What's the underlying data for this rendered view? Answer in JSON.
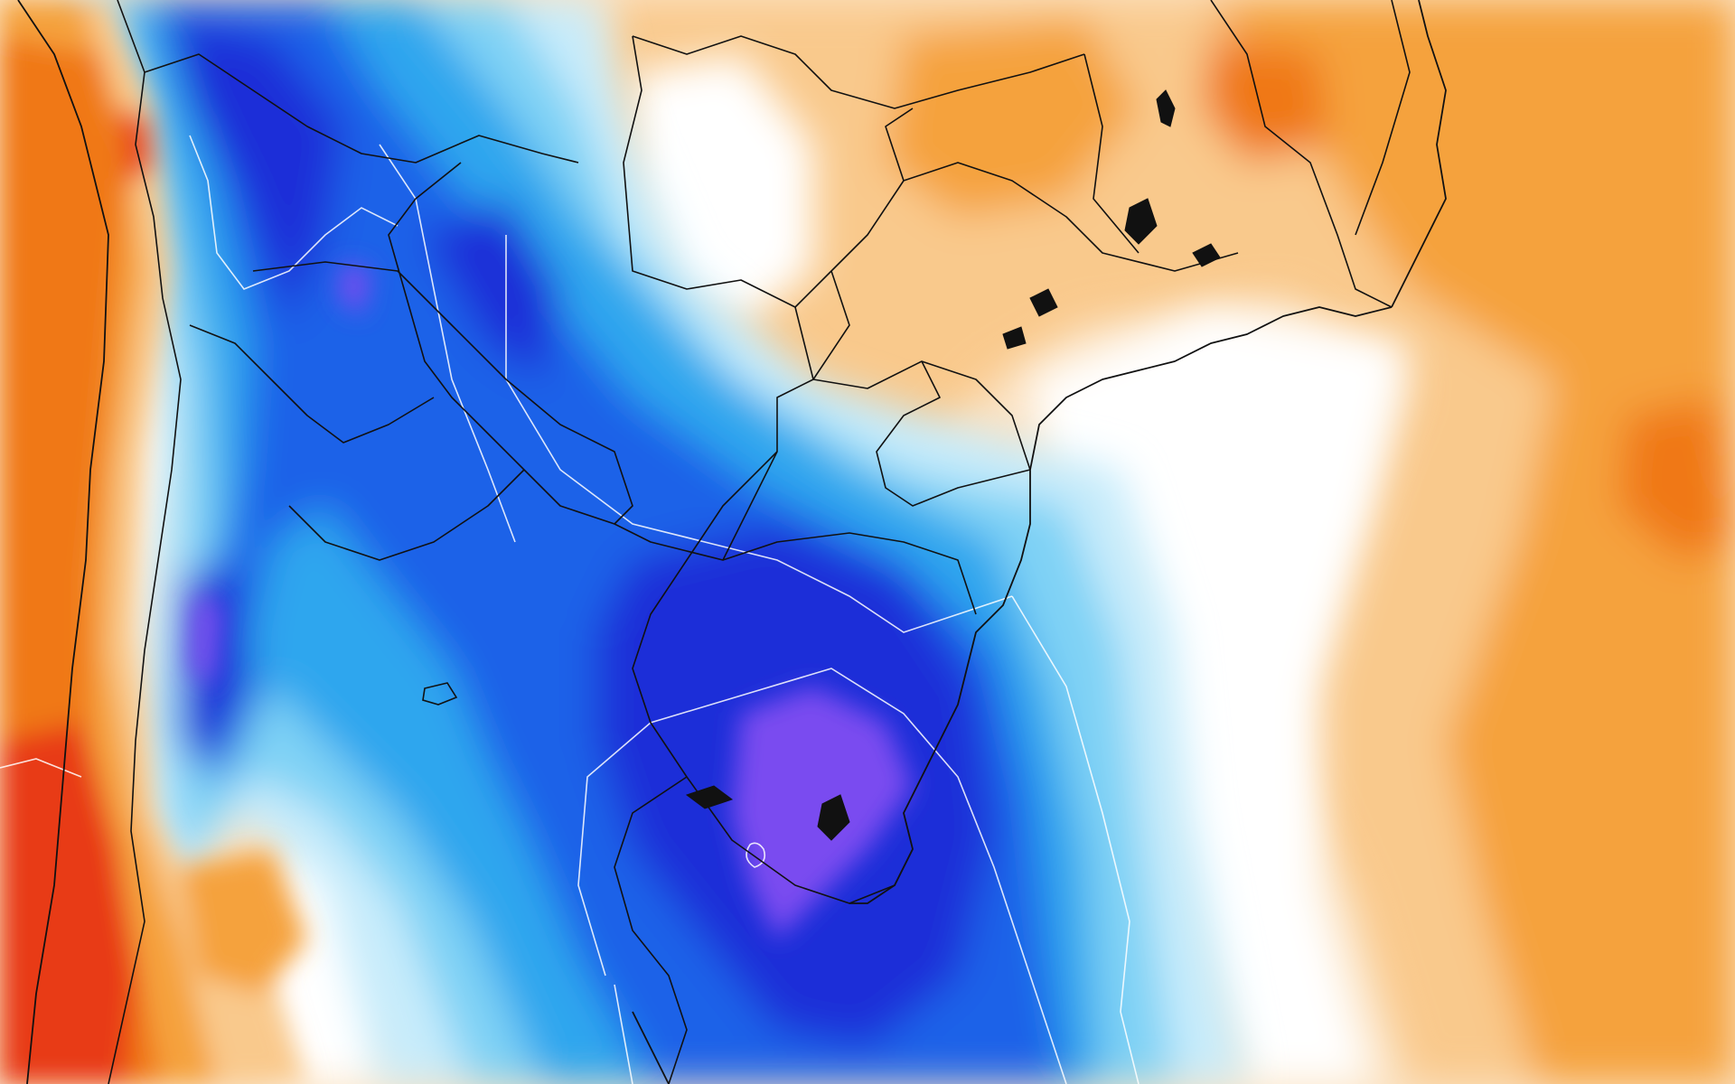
{
  "map": {
    "colors": {
      "warm_deep": "#e83a14",
      "warm_strong": "#f07818",
      "warm_mid": "#f5a23c",
      "warm_light": "#f9c98c",
      "warm_pale": "#fbe3c4",
      "neutral": "#ffffff",
      "cool_pale": "#c8ecfb",
      "cool_light": "#7fd2f5",
      "cool_mid": "#2fa6ee",
      "cool_strong": "#1a62e8",
      "cool_deep": "#1a2fd8",
      "cold_violet": "#7a4cf0",
      "border_line": "#111111",
      "contour_line": "#ffffff"
    },
    "regions": [
      "anomaly-field-warm-west",
      "anomaly-field-cold-core",
      "anomaly-field-warm-east",
      "anomaly-field-warm-north"
    ]
  }
}
